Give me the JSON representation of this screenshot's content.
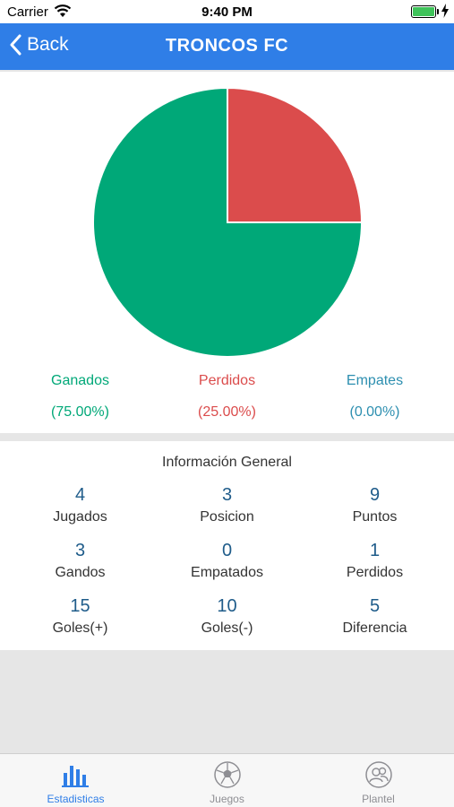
{
  "status_bar": {
    "carrier": "Carrier",
    "time": "9:40 PM"
  },
  "nav": {
    "back_label": "Back",
    "title": "TRONCOS FC"
  },
  "chart_data": {
    "type": "pie",
    "slices": [
      {
        "label": "Ganados",
        "value": 75.0,
        "percent_label": "(75.00%)",
        "color": "#00a878"
      },
      {
        "label": "Perdidos",
        "value": 25.0,
        "percent_label": "(25.00%)",
        "color": "#db4c4c"
      },
      {
        "label": "Empates",
        "value": 0.0,
        "percent_label": "(0.00%)",
        "color": "#2d8fb0"
      }
    ]
  },
  "info": {
    "title": "Información General",
    "stats": [
      {
        "value": "4",
        "label": "Jugados"
      },
      {
        "value": "3",
        "label": "Posicion"
      },
      {
        "value": "9",
        "label": "Puntos"
      },
      {
        "value": "3",
        "label": "Gandos"
      },
      {
        "value": "0",
        "label": "Empatados"
      },
      {
        "value": "1",
        "label": "Perdidos"
      },
      {
        "value": "15",
        "label": "Goles(+)"
      },
      {
        "value": "10",
        "label": "Goles(-)"
      },
      {
        "value": "5",
        "label": "Diferencia"
      }
    ]
  },
  "tabs": [
    {
      "label": "Estadisticas",
      "icon": "bar-chart-icon",
      "active": true
    },
    {
      "label": "Juegos",
      "icon": "soccer-ball-icon",
      "active": false
    },
    {
      "label": "Plantel",
      "icon": "people-icon",
      "active": false
    }
  ],
  "colors": {
    "accent": "#2f7ee7",
    "inactive_tab": "#8e8e93",
    "stat_number": "#1f5c8a"
  }
}
